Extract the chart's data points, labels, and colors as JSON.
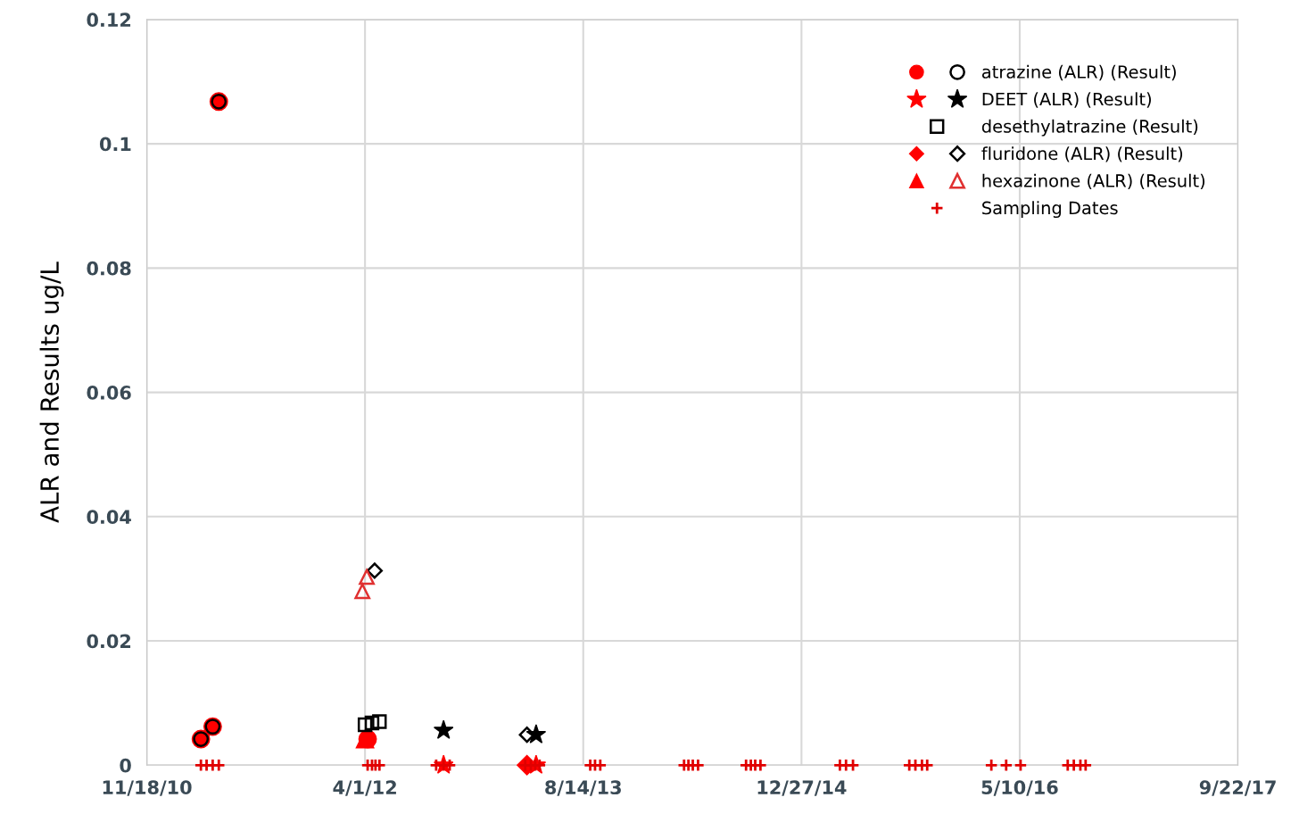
{
  "chart_data": {
    "type": "scatter",
    "ylabel": "ALR and Results ug/L",
    "xlim": [
      "2010-11-18",
      "2017-09-22"
    ],
    "xticks": [
      {
        "value": "2010-11-18",
        "label": "11/18/10"
      },
      {
        "value": "2012-04-01",
        "label": "4/1/12"
      },
      {
        "value": "2013-08-14",
        "label": "8/14/13"
      },
      {
        "value": "2014-12-27",
        "label": "12/27/14"
      },
      {
        "value": "2016-05-10",
        "label": "5/10/16"
      },
      {
        "value": "2017-09-22",
        "label": "9/22/17"
      }
    ],
    "ylim": [
      0,
      0.12
    ],
    "yticks": [
      0,
      0.02,
      0.04,
      0.06,
      0.08,
      0.1,
      0.12
    ],
    "grid": true,
    "legend": "top right",
    "series": [
      {
        "color": "#ff0000",
        "marker": "circle",
        "x": [
          "2011-03-22",
          "2011-04-18",
          "2011-05-02",
          "2012-04-07"
        ],
        "values": [
          0.0042,
          0.0062,
          0.1068,
          0.0042
        ]
      },
      {
        "name": "atrazine (ALR) (Result)",
        "color": "#000000",
        "marker": "circle",
        "x": [
          "2011-03-22",
          "2011-04-18",
          "2011-05-02"
        ],
        "values": [
          0.0042,
          0.0062,
          0.1068
        ]
      },
      {
        "color": "#ff0000",
        "marker": "star",
        "x": [
          "2012-09-28",
          "2013-04-28"
        ],
        "values": [
          0,
          0
        ]
      },
      {
        "name": "DEET (ALR) (Result)",
        "color": "#000000",
        "marker": "star",
        "x": [
          "2012-09-28",
          "2013-04-28"
        ],
        "values": [
          0.0056,
          0.0049
        ]
      },
      {
        "name": "desethylatrazine (Result)",
        "color": "#000000",
        "marker": "square",
        "x": [
          "2012-04-01",
          "2012-04-17",
          "2012-05-04"
        ],
        "values": [
          0.0065,
          0.0068,
          0.007
        ]
      },
      {
        "color": "#ff0000",
        "marker": "diamond",
        "x": [
          "2013-04-07"
        ],
        "values": [
          0
        ]
      },
      {
        "name": "fluridone (ALR) (Result)",
        "color": "#000000",
        "marker": "diamond",
        "x": [
          "2012-04-23",
          "2013-04-07"
        ],
        "values": [
          0.0313,
          0.0049
        ]
      },
      {
        "color": "#ff0000",
        "marker": "triangle",
        "x": [
          "2012-04-01"
        ],
        "values": [
          0.0042
        ]
      },
      {
        "name": "hexazinone (ALR) (Result)",
        "color": "#e03030",
        "marker": "triangle",
        "x": [
          "2012-03-26",
          "2012-04-05"
        ],
        "values": [
          0.028,
          0.0303
        ]
      },
      {
        "name": "Sampling Dates",
        "color": "#e00000",
        "marker": "cross",
        "x": [
          "2011-03-22",
          "2011-04-04",
          "2011-04-18",
          "2011-05-02",
          "2012-04-07",
          "2012-04-17",
          "2012-04-25",
          "2012-05-04",
          "2012-09-11",
          "2012-09-28",
          "2012-10-12",
          "2013-04-03",
          "2013-04-16",
          "2013-04-26",
          "2013-05-06",
          "2013-08-30",
          "2013-09-10",
          "2013-09-22",
          "2014-04-02",
          "2014-04-12",
          "2014-04-22",
          "2014-05-04",
          "2014-08-22",
          "2014-09-02",
          "2014-09-12",
          "2014-09-24",
          "2015-03-25",
          "2015-04-08",
          "2015-04-24",
          "2015-08-31",
          "2015-09-14",
          "2015-09-29",
          "2015-10-11",
          "2016-03-06",
          "2016-04-09",
          "2016-05-12",
          "2016-08-28",
          "2016-09-11",
          "2016-09-26",
          "2016-10-08"
        ],
        "values": [
          0,
          0,
          0,
          0,
          0,
          0,
          0,
          0,
          0,
          0,
          0,
          0,
          0,
          0,
          0,
          0,
          0,
          0,
          0,
          0,
          0,
          0,
          0,
          0,
          0,
          0,
          0,
          0,
          0,
          0,
          0,
          0,
          0,
          0,
          0,
          0,
          0,
          0,
          0,
          0
        ]
      }
    ]
  }
}
